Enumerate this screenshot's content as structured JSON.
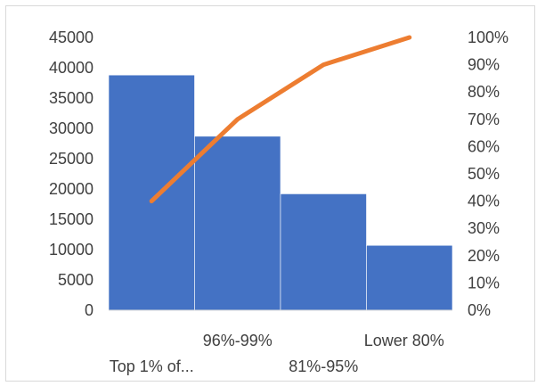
{
  "chart_data": {
    "type": "bar",
    "title": "",
    "xlabel": "",
    "ylabel": "",
    "categories": [
      "Top 1% of...",
      "96%-99%",
      "81%-95%",
      "Lower 80%"
    ],
    "series": [
      {
        "values": [
          38800,
          28700,
          19200,
          10700
        ],
        "axis": "primary",
        "kind": "bar"
      },
      {
        "values": [
          40,
          70,
          90,
          100
        ],
        "axis": "secondary",
        "kind": "line"
      }
    ],
    "ylim": [
      0,
      45000
    ],
    "y2lim": [
      0,
      100
    ],
    "y_ticks": [
      "0",
      "5000",
      "10000",
      "15000",
      "20000",
      "25000",
      "30000",
      "35000",
      "40000",
      "45000"
    ],
    "y2_ticks": [
      "0%",
      "10%",
      "20%",
      "30%",
      "40%",
      "50%",
      "60%",
      "70%",
      "80%",
      "90%",
      "100%"
    ],
    "grid": false,
    "legend": "none",
    "colors": {
      "bar": "#4472c4",
      "line": "#ed7d31",
      "text": "#404040"
    }
  }
}
